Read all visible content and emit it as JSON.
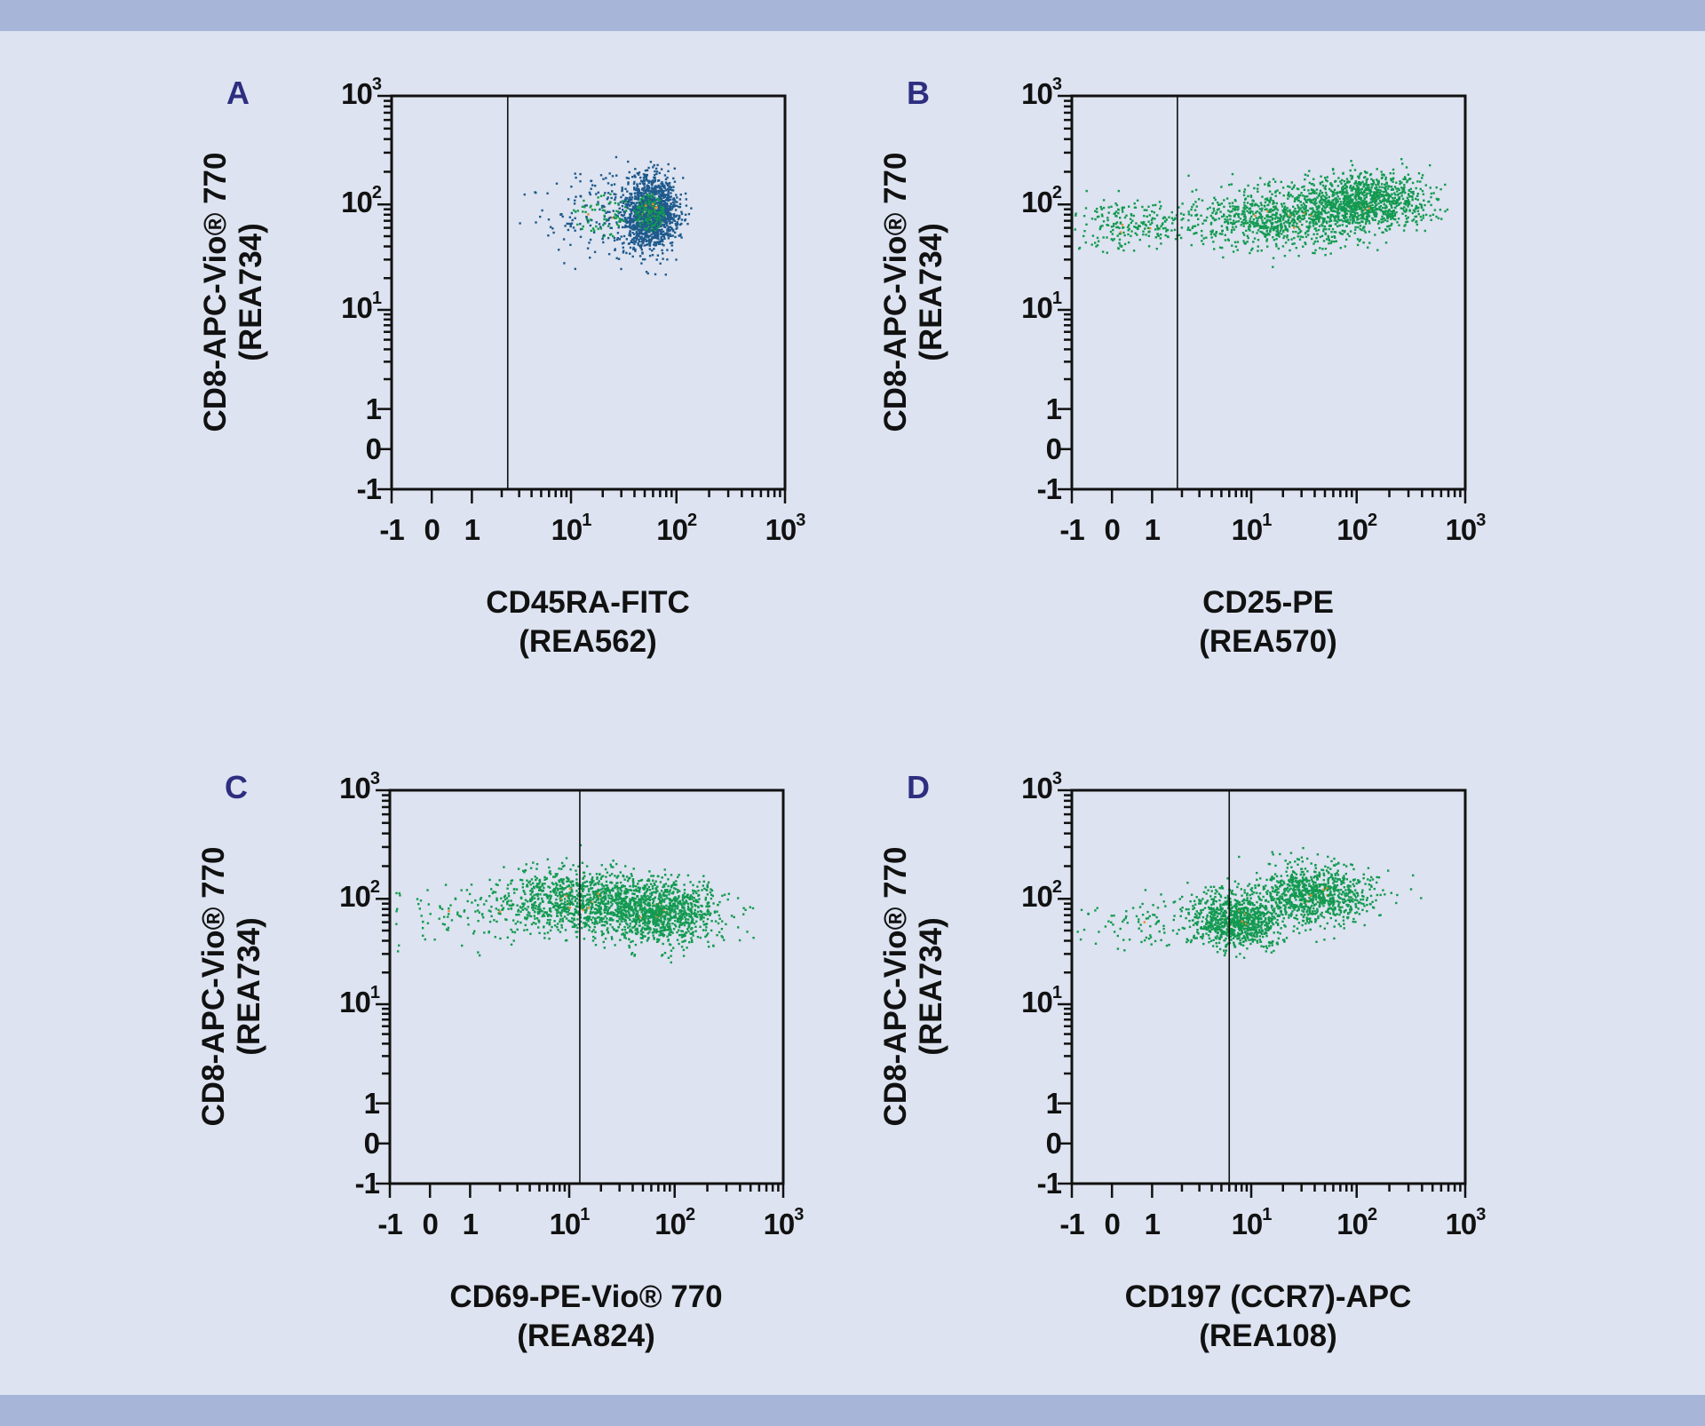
{
  "colors": {
    "background": "#dde3f0",
    "band": "#a7b5d8",
    "letter": "#2e2e80",
    "dots_green": "#129a50",
    "dots_blue": "#1f5a8c",
    "dots_hot": "#e88a2a"
  },
  "chart_data": [
    {
      "type": "scatter",
      "panel": "A",
      "xlabel": [
        "CD45RA-FITC",
        "(REA562)"
      ],
      "ylabel": [
        "CD8-APC-Vio® 770",
        "(REA734)"
      ],
      "scale": "biexponential",
      "ticks": [
        -1,
        0,
        1,
        10,
        100,
        1000
      ],
      "tick_labels": [
        "-1",
        "0",
        "1",
        "10^1",
        "10^2",
        "10^3"
      ],
      "xlim": [
        -1,
        1000
      ],
      "ylim": [
        -1,
        1000
      ],
      "gate_x": 2.3,
      "dot_color": "blue",
      "populations": [
        {
          "x_center": 55,
          "y_center": 85,
          "x_sd_decades": 0.13,
          "y_sd_decades": 0.17,
          "n": 1500
        },
        {
          "x_center": 20,
          "y_center": 80,
          "x_sd_decades": 0.28,
          "y_sd_decades": 0.2,
          "n": 250
        }
      ]
    },
    {
      "type": "scatter",
      "panel": "B",
      "xlabel": [
        "CD25-PE",
        "(REA570)"
      ],
      "ylabel": [
        "CD8-APC-Vio® 770",
        "(REA734)"
      ],
      "scale": "biexponential",
      "ticks": [
        -1,
        0,
        1,
        10,
        100,
        1000
      ],
      "tick_labels": [
        "-1",
        "0",
        "1",
        "10^1",
        "10^2",
        "10^3"
      ],
      "xlim": [
        -1,
        1000
      ],
      "ylim": [
        -1,
        1000
      ],
      "gate_x": 1.8,
      "dot_color": "green",
      "populations": [
        {
          "x_center": 120,
          "y_center": 110,
          "x_sd_decades": 0.3,
          "y_sd_decades": 0.13,
          "n": 1000
        },
        {
          "x_center": 20,
          "y_center": 75,
          "x_sd_decades": 0.45,
          "y_sd_decades": 0.14,
          "n": 900
        },
        {
          "x_center": 0.5,
          "y_center": 65,
          "x_sd_decades": 0.35,
          "y_sd_decades": 0.12,
          "n": 250
        }
      ]
    },
    {
      "type": "scatter",
      "panel": "C",
      "xlabel": [
        "CD69-PE-Vio® 770",
        "(REA824)"
      ],
      "ylabel": [
        "CD8-APC-Vio® 770",
        "(REA734)"
      ],
      "scale": "biexponential",
      "ticks": [
        -1,
        0,
        1,
        10,
        100,
        1000
      ],
      "tick_labels": [
        "-1",
        "0",
        "1",
        "10^1",
        "10^2",
        "10^3"
      ],
      "xlim": [
        -1,
        1000
      ],
      "ylim": [
        -1,
        1000
      ],
      "gate_x": 12.6,
      "dot_color": "green",
      "populations": [
        {
          "x_center": 70,
          "y_center": 75,
          "x_sd_decades": 0.3,
          "y_sd_decades": 0.15,
          "n": 1100
        },
        {
          "x_center": 12,
          "y_center": 100,
          "x_sd_decades": 0.4,
          "y_sd_decades": 0.16,
          "n": 1000
        },
        {
          "x_center": 1,
          "y_center": 70,
          "x_sd_decades": 0.5,
          "y_sd_decades": 0.14,
          "n": 120
        }
      ]
    },
    {
      "type": "scatter",
      "panel": "D",
      "xlabel": [
        "CD197 (CCR7)-APC",
        "(REA108)"
      ],
      "ylabel": [
        "CD8-APC-Vio® 770",
        "(REA734)"
      ],
      "scale": "biexponential",
      "ticks": [
        -1,
        0,
        1,
        10,
        100,
        1000
      ],
      "tick_labels": [
        "-1",
        "0",
        "1",
        "10^1",
        "10^2",
        "10^3"
      ],
      "xlim": [
        -1,
        1000
      ],
      "ylim": [
        -1,
        1000
      ],
      "gate_x": 6,
      "dot_color": "green",
      "populations": [
        {
          "x_center": 7,
          "y_center": 65,
          "x_sd_decades": 0.22,
          "y_sd_decades": 0.13,
          "n": 900
        },
        {
          "x_center": 40,
          "y_center": 110,
          "x_sd_decades": 0.3,
          "y_sd_decades": 0.14,
          "n": 900
        },
        {
          "x_center": 1,
          "y_center": 60,
          "x_sd_decades": 0.4,
          "y_sd_decades": 0.12,
          "n": 120
        }
      ]
    }
  ]
}
